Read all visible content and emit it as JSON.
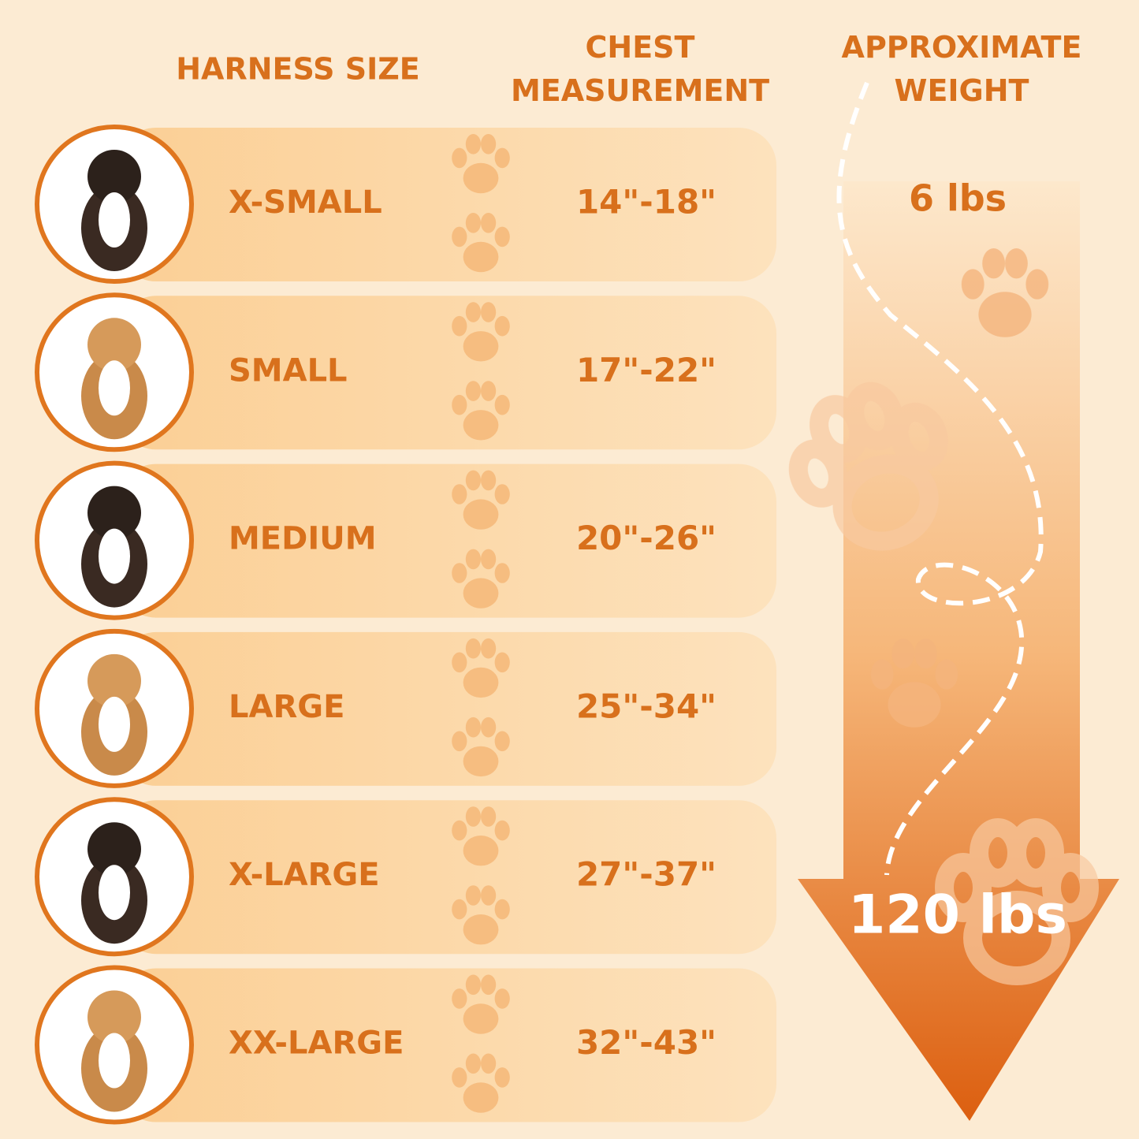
{
  "header": {
    "size": "HARNESS SIZE",
    "chest": "CHEST MEASUREMENT",
    "weight": "APPROXIMATE WEIGHT"
  },
  "rows": [
    {
      "size": "X-SMALL",
      "chest": "14\"-18\""
    },
    {
      "size": "SMALL",
      "chest": "17\"-22\""
    },
    {
      "size": "MEDIUM",
      "chest": "20\"-26\""
    },
    {
      "size": "LARGE",
      "chest": "25\"-34\""
    },
    {
      "size": "X-LARGE",
      "chest": "27\"-37\""
    },
    {
      "size": "XX-LARGE",
      "chest": "32\"-43\""
    }
  ],
  "weight": {
    "min": "6 lbs",
    "max": "120 lbs"
  }
}
